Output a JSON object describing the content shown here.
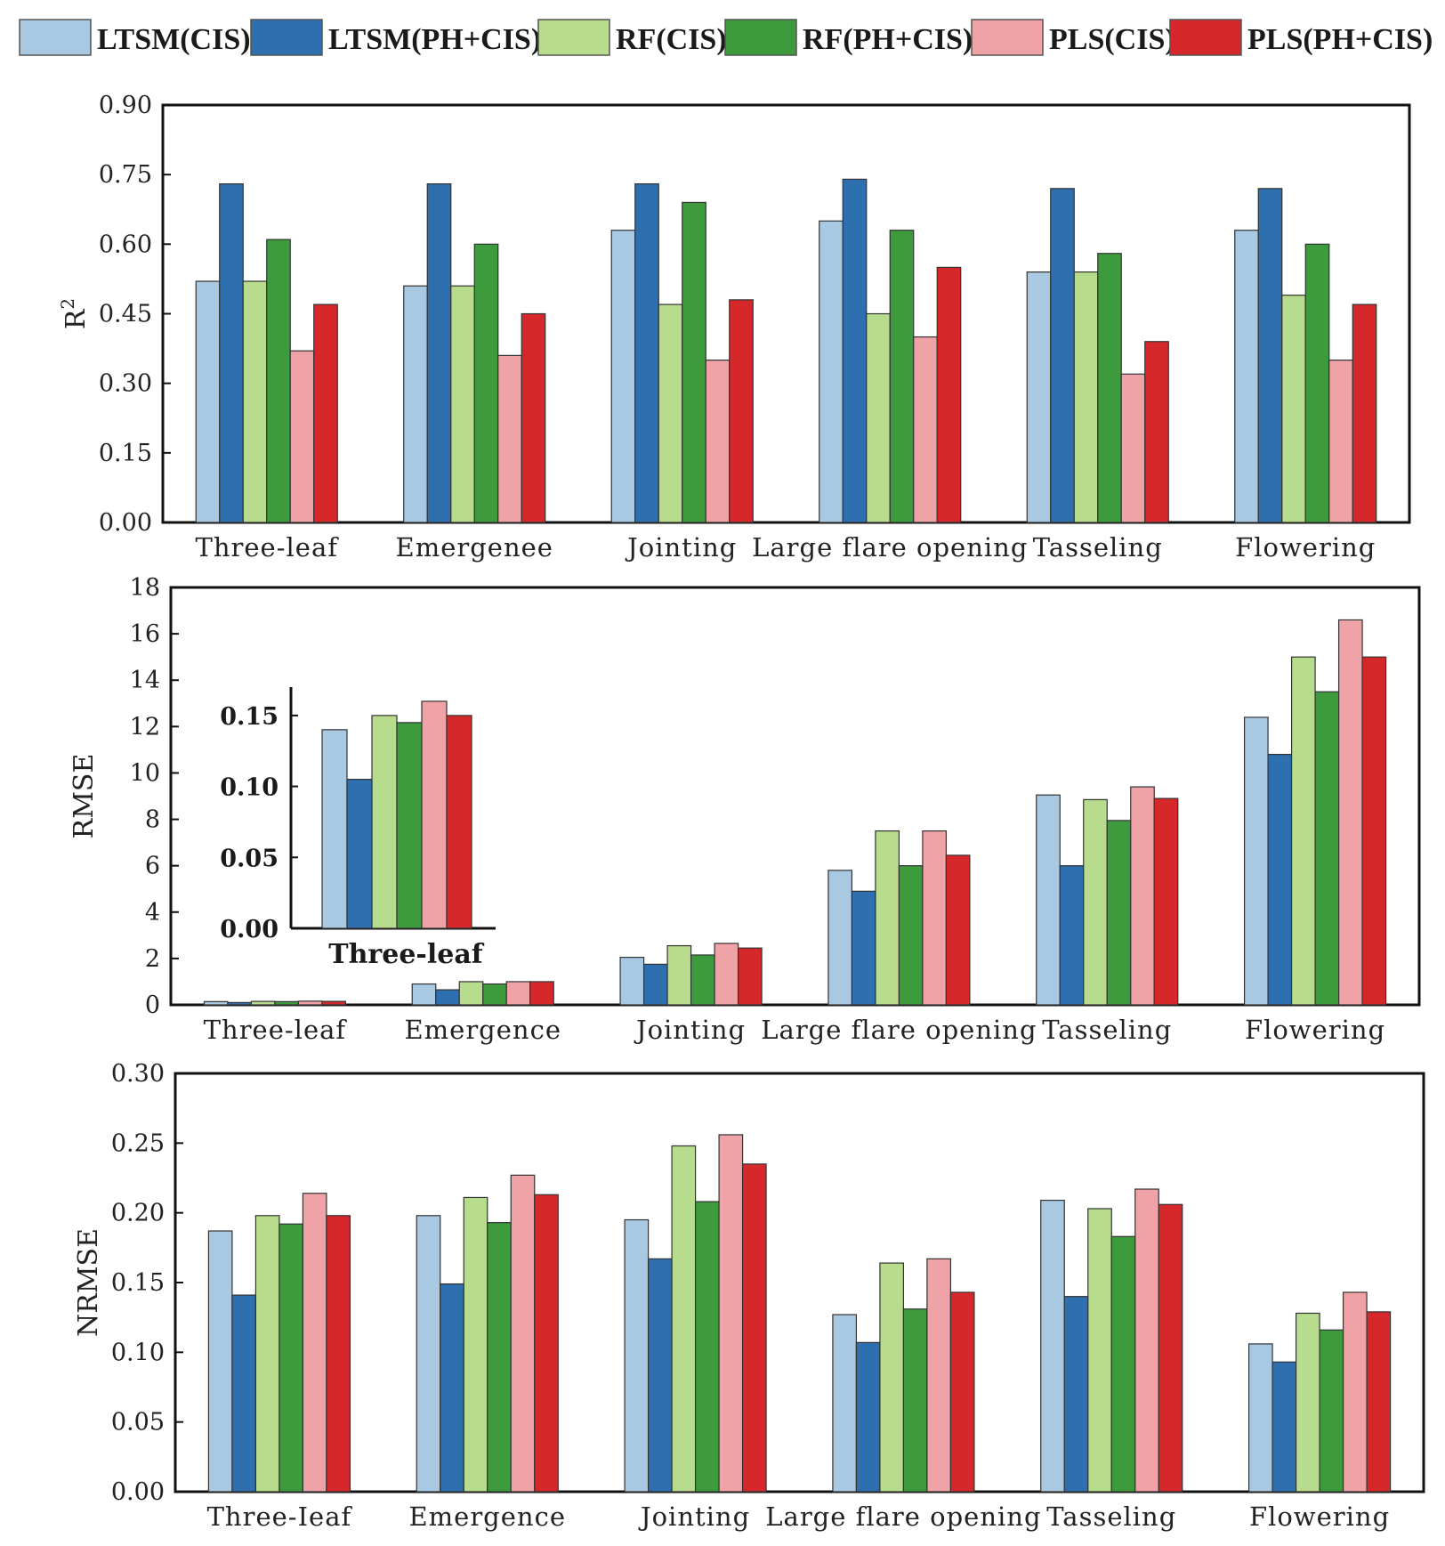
{
  "series_colors": [
    "#a9c8e2",
    "#2e6fb0",
    "#b7dc8d",
    "#3d9b3d",
    "#f0a3a6",
    "#d6282b"
  ],
  "legend": [
    "LTSM(CIS)",
    "LTSM(PH+CIS)",
    "RF(CIS)",
    "RF(PH+CIS)",
    "PLS(CIS)",
    "PLS(PH+CIS)"
  ],
  "chart_data": [
    {
      "id": "r2",
      "type": "bar",
      "title": "",
      "ylabel": "R",
      "ylabel_sup": "2",
      "xlabel": "",
      "ylim": [
        0,
        0.9
      ],
      "yticks": [
        0,
        0.15,
        0.3,
        0.45,
        0.6,
        0.75,
        0.9
      ],
      "ytick_labels": [
        "0.00",
        "0.15",
        "0.30",
        "0.45",
        "0.60",
        "0.75",
        "0.90"
      ],
      "categories": [
        "Three-leaf",
        "Emergenee",
        "Jointing",
        "Large flare opening",
        "Tasseling",
        "Flowering"
      ],
      "series": [
        {
          "name": "LTSM(CIS)",
          "values": [
            0.52,
            0.51,
            0.63,
            0.65,
            0.54,
            0.63
          ]
        },
        {
          "name": "LTSM(PH+CIS)",
          "values": [
            0.73,
            0.73,
            0.73,
            0.74,
            0.72,
            0.72
          ]
        },
        {
          "name": "RF(CIS)",
          "values": [
            0.52,
            0.51,
            0.47,
            0.45,
            0.54,
            0.49
          ]
        },
        {
          "name": "RF(PH+CIS)",
          "values": [
            0.61,
            0.6,
            0.69,
            0.63,
            0.58,
            0.6
          ]
        },
        {
          "name": "PLS(CIS)",
          "values": [
            0.37,
            0.36,
            0.35,
            0.4,
            0.32,
            0.35
          ]
        },
        {
          "name": "PLS(PH+CIS)",
          "values": [
            0.47,
            0.45,
            0.48,
            0.55,
            0.39,
            0.47
          ]
        }
      ]
    },
    {
      "id": "rmse",
      "type": "bar",
      "title": "",
      "ylabel": "RMSE",
      "xlabel": "",
      "ylim": [
        0,
        18
      ],
      "yticks": [
        0,
        2,
        4,
        6,
        8,
        10,
        12,
        14,
        16,
        18
      ],
      "ytick_labels": [
        "0",
        "2",
        "4",
        "6",
        "8",
        "10",
        "12",
        "14",
        "16",
        "18"
      ],
      "categories": [
        "Three-leaf",
        "Emergence",
        "Jointing",
        "Large flare opening",
        "Tasseling",
        "Flowering"
      ],
      "series": [
        {
          "name": "LTSM(CIS)",
          "values": [
            0.14,
            0.9,
            2.05,
            5.8,
            9.05,
            12.4
          ]
        },
        {
          "name": "LTSM(PH+CIS)",
          "values": [
            0.1,
            0.65,
            1.75,
            4.9,
            6.0,
            10.8
          ]
        },
        {
          "name": "RF(CIS)",
          "values": [
            0.15,
            1.0,
            2.55,
            7.5,
            8.85,
            15.0
          ]
        },
        {
          "name": "RF(PH+CIS)",
          "values": [
            0.14,
            0.9,
            2.15,
            6.0,
            7.95,
            13.5
          ]
        },
        {
          "name": "PLS(CIS)",
          "values": [
            0.16,
            1.0,
            2.65,
            7.5,
            9.4,
            16.6
          ]
        },
        {
          "name": "PLS(PH+CIS)",
          "values": [
            0.15,
            1.0,
            2.45,
            6.45,
            8.9,
            15.0
          ]
        }
      ],
      "inset": {
        "category": "Three-leaf",
        "ylim": [
          0,
          0.17
        ],
        "yticks": [
          0,
          0.05,
          0.1,
          0.15
        ],
        "ytick_labels": [
          "0.00",
          "0.05",
          "0.10",
          "0.15"
        ],
        "values": [
          0.14,
          0.105,
          0.15,
          0.145,
          0.16,
          0.15
        ]
      }
    },
    {
      "id": "nrmse",
      "type": "bar",
      "title": "",
      "ylabel": "NRMSE",
      "xlabel": "",
      "ylim": [
        0,
        0.3
      ],
      "yticks": [
        0,
        0.05,
        0.1,
        0.15,
        0.2,
        0.25,
        0.3
      ],
      "ytick_labels": [
        "0.00",
        "0.05",
        "0.10",
        "0.15",
        "0.20",
        "0.25",
        "0.30"
      ],
      "categories": [
        "Three-Ieaf",
        "Emergence",
        "Jointing",
        "Large flare opening",
        "Tasseling",
        "Flowering"
      ],
      "series": [
        {
          "name": "LTSM(CIS)",
          "values": [
            0.187,
            0.198,
            0.195,
            0.127,
            0.209,
            0.106
          ]
        },
        {
          "name": "LTSM(PH+CIS)",
          "values": [
            0.141,
            0.149,
            0.167,
            0.107,
            0.14,
            0.093
          ]
        },
        {
          "name": "RF(CIS)",
          "values": [
            0.198,
            0.211,
            0.248,
            0.164,
            0.203,
            0.128
          ]
        },
        {
          "name": "RF(PH+CIS)",
          "values": [
            0.192,
            0.193,
            0.208,
            0.131,
            0.183,
            0.116
          ]
        },
        {
          "name": "PLS(CIS)",
          "values": [
            0.214,
            0.227,
            0.256,
            0.167,
            0.217,
            0.143
          ]
        },
        {
          "name": "PLS(PH+CIS)",
          "values": [
            0.198,
            0.213,
            0.235,
            0.143,
            0.206,
            0.129
          ]
        }
      ]
    }
  ]
}
